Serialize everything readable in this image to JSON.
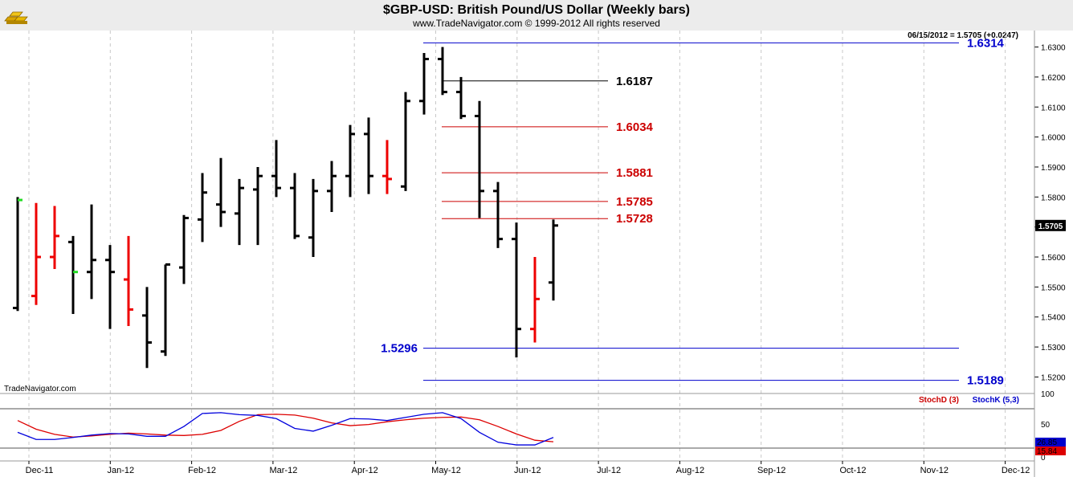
{
  "logo_icon": "gold-bars-icon",
  "chart_data": {
    "type": "ohlc",
    "title": "$GBP-USD:  British Pound/US Dollar  (Weekly bars)",
    "subtitle": "www.TradeNavigator.com © 1999-2012 All rights reserved",
    "quote": "06/15/2012 = 1.5705 (+0.0247)",
    "watermark": "TradeNavigator.com",
    "y_ticks": [
      "1.6300",
      "1.6200",
      "1.6100",
      "1.6000",
      "1.5900",
      "1.5800",
      "1.5700",
      "1.5600",
      "1.5500",
      "1.5400",
      "1.5300",
      "1.5200"
    ],
    "ylim": [
      1.5145,
      1.6355
    ],
    "last_price": "1.5705",
    "x_ticks": [
      "Dec-11",
      "Jan-12",
      "Feb-12",
      "Mar-12",
      "Apr-12",
      "May-12",
      "Jun-12",
      "Jul-12",
      "Aug-12",
      "Sep-12",
      "Oct-12",
      "Nov-12",
      "Dec-12"
    ],
    "bars": [
      {
        "o": 1.543,
        "h": 1.58,
        "l": 1.542,
        "c": 1.579,
        "color": "black",
        "open_color": "black",
        "close_color": "green"
      },
      {
        "o": 1.547,
        "h": 1.578,
        "l": 1.544,
        "c": 1.56,
        "color": "red",
        "open_color": "red",
        "close_color": "red"
      },
      {
        "o": 1.56,
        "h": 1.577,
        "l": 1.556,
        "c": 1.567,
        "color": "red",
        "open_color": "red",
        "close_color": "red"
      },
      {
        "o": 1.565,
        "h": 1.567,
        "l": 1.541,
        "c": 1.555,
        "color": "black",
        "open_color": "black",
        "close_color": "green"
      },
      {
        "o": 1.555,
        "h": 1.5775,
        "l": 1.546,
        "c": 1.559,
        "color": "black",
        "open_color": "black",
        "close_color": "black"
      },
      {
        "o": 1.559,
        "h": 1.564,
        "l": 1.536,
        "c": 1.555,
        "color": "black",
        "open_color": "black",
        "close_color": "black"
      },
      {
        "o": 1.5525,
        "h": 1.567,
        "l": 1.537,
        "c": 1.5425,
        "color": "red",
        "open_color": "red",
        "close_color": "red"
      },
      {
        "o": 1.5405,
        "h": 1.55,
        "l": 1.523,
        "c": 1.5315,
        "color": "black",
        "open_color": "black",
        "close_color": "black"
      },
      {
        "o": 1.5285,
        "h": 1.5575,
        "l": 1.527,
        "c": 1.5575,
        "color": "black",
        "open_color": "black",
        "close_color": "black"
      },
      {
        "o": 1.5565,
        "h": 1.574,
        "l": 1.551,
        "c": 1.573,
        "color": "black",
        "open_color": "black",
        "close_color": "black"
      },
      {
        "o": 1.5725,
        "h": 1.588,
        "l": 1.565,
        "c": 1.5815,
        "color": "black",
        "open_color": "black",
        "close_color": "black"
      },
      {
        "o": 1.5775,
        "h": 1.593,
        "l": 1.57,
        "c": 1.575,
        "color": "black",
        "open_color": "black",
        "close_color": "black"
      },
      {
        "o": 1.5745,
        "h": 1.586,
        "l": 1.564,
        "c": 1.583,
        "color": "black",
        "open_color": "black",
        "close_color": "black"
      },
      {
        "o": 1.5825,
        "h": 1.59,
        "l": 1.564,
        "c": 1.587,
        "color": "black",
        "open_color": "black",
        "close_color": "black"
      },
      {
        "o": 1.587,
        "h": 1.599,
        "l": 1.58,
        "c": 1.583,
        "color": "black",
        "open_color": "black",
        "close_color": "black"
      },
      {
        "o": 1.583,
        "h": 1.588,
        "l": 1.566,
        "c": 1.567,
        "color": "black",
        "open_color": "black",
        "close_color": "black"
      },
      {
        "o": 1.5665,
        "h": 1.586,
        "l": 1.56,
        "c": 1.582,
        "color": "black",
        "open_color": "black",
        "close_color": "black"
      },
      {
        "o": 1.582,
        "h": 1.592,
        "l": 1.575,
        "c": 1.587,
        "color": "black",
        "open_color": "black",
        "close_color": "black"
      },
      {
        "o": 1.587,
        "h": 1.604,
        "l": 1.58,
        "c": 1.601,
        "color": "black",
        "open_color": "black",
        "close_color": "black"
      },
      {
        "o": 1.601,
        "h": 1.6065,
        "l": 1.581,
        "c": 1.587,
        "color": "black",
        "open_color": "black",
        "close_color": "black"
      },
      {
        "o": 1.587,
        "h": 1.599,
        "l": 1.581,
        "c": 1.586,
        "color": "red",
        "open_color": "red",
        "close_color": "red"
      },
      {
        "o": 1.5835,
        "h": 1.615,
        "l": 1.582,
        "c": 1.612,
        "color": "black",
        "open_color": "black",
        "close_color": "black"
      },
      {
        "o": 1.612,
        "h": 1.628,
        "l": 1.6075,
        "c": 1.626,
        "color": "black",
        "open_color": "black",
        "close_color": "black"
      },
      {
        "o": 1.626,
        "h": 1.63,
        "l": 1.614,
        "c": 1.615,
        "color": "black",
        "open_color": "black",
        "close_color": "black"
      },
      {
        "o": 1.615,
        "h": 1.62,
        "l": 1.606,
        "c": 1.607,
        "color": "black",
        "open_color": "black",
        "close_color": "black"
      },
      {
        "o": 1.607,
        "h": 1.612,
        "l": 1.573,
        "c": 1.582,
        "color": "black",
        "open_color": "black",
        "close_color": "black"
      },
      {
        "o": 1.582,
        "h": 1.585,
        "l": 1.563,
        "c": 1.566,
        "color": "black",
        "open_color": "black",
        "close_color": "black"
      },
      {
        "o": 1.566,
        "h": 1.5715,
        "l": 1.5265,
        "c": 1.536,
        "color": "black",
        "open_color": "black",
        "close_color": "black"
      },
      {
        "o": 1.536,
        "h": 1.56,
        "l": 1.5315,
        "c": 1.546,
        "color": "red",
        "open_color": "red",
        "close_color": "red"
      },
      {
        "o": 1.5515,
        "h": 1.5725,
        "l": 1.5455,
        "c": 1.5705,
        "color": "black",
        "open_color": "black",
        "close_color": "black"
      }
    ],
    "levels": [
      {
        "value": 1.6314,
        "label": "1.6314",
        "color": "#0000cc",
        "label_side": "right"
      },
      {
        "value": 1.6187,
        "label": "1.6187",
        "color": "#000000",
        "label_side": "mid"
      },
      {
        "value": 1.6034,
        "label": "1.6034",
        "color": "#cc0000",
        "label_side": "mid"
      },
      {
        "value": 1.5881,
        "label": "1.5881",
        "color": "#cc0000",
        "label_side": "mid"
      },
      {
        "value": 1.5785,
        "label": "1.5785",
        "color": "#cc0000",
        "label_side": "mid"
      },
      {
        "value": 1.5728,
        "label": "1.5728",
        "color": "#cc0000",
        "label_side": "mid"
      },
      {
        "value": 1.5296,
        "label": "1.5296",
        "color": "#0000cc",
        "label_side": "left"
      },
      {
        "value": 1.5189,
        "label": "1.5189",
        "color": "#0000cc",
        "label_side": "right"
      }
    ],
    "stochastic": {
      "d_label": "StochD (3)",
      "k_label": "StochK (5,3)",
      "y_ticks": [
        "100",
        "50",
        "0"
      ],
      "d_value": "15.84",
      "k_value": "26.85",
      "stoch_d": [
        70,
        48,
        35,
        28,
        31,
        35,
        38,
        36,
        33,
        32,
        35,
        45,
        68,
        85,
        86,
        84,
        76,
        64,
        57,
        60,
        67,
        72,
        76,
        78,
        79,
        72,
        55,
        36,
        20,
        16
      ],
      "stoch_k": [
        40,
        22,
        22,
        27,
        33,
        37,
        36,
        30,
        30,
        55,
        88,
        90,
        85,
        83,
        75,
        50,
        43,
        58,
        75,
        74,
        70,
        78,
        86,
        90,
        75,
        40,
        15,
        8,
        8,
        27
      ]
    }
  }
}
